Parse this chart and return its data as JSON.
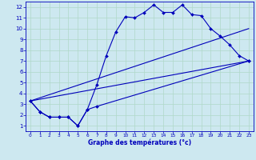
{
  "xlabel": "Graphe des températures (°c)",
  "bg_color": "#cde8f0",
  "line_color": "#0000bb",
  "grid_color": "#b0d8c8",
  "xlim": [
    -0.5,
    23.5
  ],
  "ylim": [
    0.5,
    12.5
  ],
  "xticks": [
    0,
    1,
    2,
    3,
    4,
    5,
    6,
    7,
    8,
    9,
    10,
    11,
    12,
    13,
    14,
    15,
    16,
    17,
    18,
    19,
    20,
    21,
    22,
    23
  ],
  "yticks": [
    1,
    2,
    3,
    4,
    5,
    6,
    7,
    8,
    9,
    10,
    11,
    12
  ],
  "line1_x": [
    0,
    1,
    2,
    3,
    4,
    5,
    6,
    7,
    8,
    9,
    10,
    11,
    12,
    13,
    14,
    15,
    16,
    17,
    18,
    19,
    20,
    21,
    22,
    23
  ],
  "line1_y": [
    3.3,
    2.3,
    1.8,
    1.8,
    1.8,
    1.0,
    2.5,
    4.8,
    7.5,
    9.7,
    11.1,
    11.0,
    11.5,
    12.2,
    11.5,
    11.5,
    12.2,
    11.3,
    11.2,
    10.0,
    9.3,
    8.5,
    7.5,
    7.0
  ],
  "line2_x": [
    0,
    1,
    2,
    3,
    4,
    5,
    6,
    7,
    23
  ],
  "line2_y": [
    3.3,
    2.3,
    1.8,
    1.8,
    1.8,
    1.0,
    2.5,
    2.8,
    7.0
  ],
  "line3_x": [
    0,
    23
  ],
  "line3_y": [
    3.3,
    7.0
  ],
  "line4_x": [
    0,
    23
  ],
  "line4_y": [
    3.3,
    10.0
  ]
}
